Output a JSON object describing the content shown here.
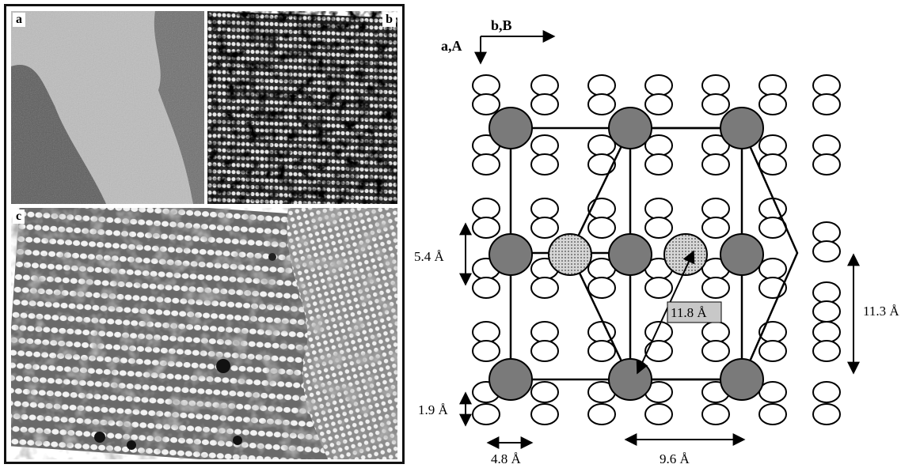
{
  "panels": {
    "a": {
      "letter": "a"
    },
    "b": {
      "letter": "b"
    },
    "c": {
      "letter": "c"
    }
  },
  "axes": {
    "horizontal": "b,B",
    "vertical": "a,A"
  },
  "dimensions": {
    "row_spacing": "5.4 Å",
    "diagonal": "11.8 Å",
    "cell_height": "11.3 Å",
    "molecule_height": "1.9 Å",
    "column_width": "4.8 Å",
    "cell_width": "9.6 Å"
  }
}
